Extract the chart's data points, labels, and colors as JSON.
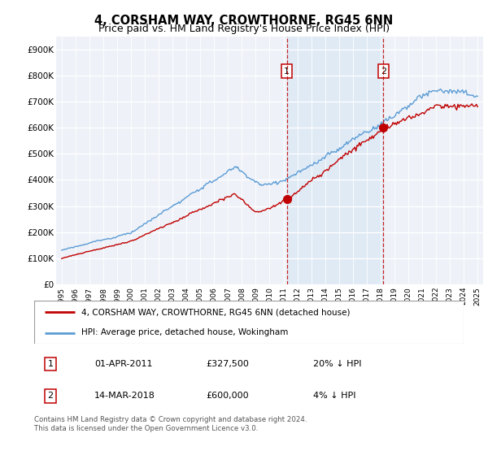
{
  "title": "4, CORSHAM WAY, CROWTHORNE, RG45 6NN",
  "subtitle": "Price paid vs. HM Land Registry's House Price Index (HPI)",
  "ylim": [
    0,
    950000
  ],
  "yticks": [
    0,
    100000,
    200000,
    300000,
    400000,
    500000,
    600000,
    700000,
    800000,
    900000
  ],
  "ytick_labels": [
    "£0",
    "£100K",
    "£200K",
    "£300K",
    "£400K",
    "£500K",
    "£600K",
    "£700K",
    "£800K",
    "£900K"
  ],
  "hpi_color": "#5b9bd5",
  "price_color": "#c00000",
  "shade_color": "#dce9f5",
  "bg_color": "#eef2f8",
  "transaction1_year": 2011.25,
  "transaction1_price": 327500,
  "transaction2_year": 2018.2,
  "transaction2_price": 600000,
  "legend_line1": "4, CORSHAM WAY, CROWTHORNE, RG45 6NN (detached house)",
  "legend_line2": "HPI: Average price, detached house, Wokingham",
  "table_row1": [
    "1",
    "01-APR-2011",
    "£327,500",
    "20% ↓ HPI"
  ],
  "table_row2": [
    "2",
    "14-MAR-2018",
    "£600,000",
    "4% ↓ HPI"
  ],
  "footnote": "Contains HM Land Registry data © Crown copyright and database right 2024.\nThis data is licensed under the Open Government Licence v3.0.",
  "title_fontsize": 10.5,
  "subtitle_fontsize": 9
}
